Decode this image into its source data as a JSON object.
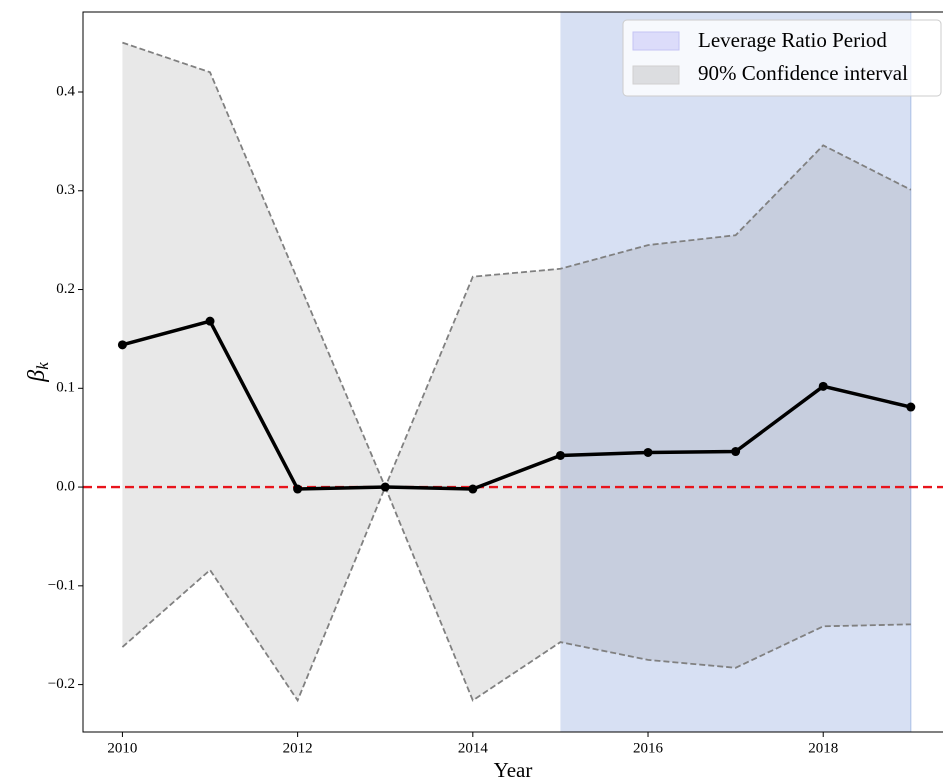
{
  "chart_data": {
    "type": "line",
    "x_label": "Year",
    "y_label": {
      "symbol": "β",
      "subscript": "k"
    },
    "x": [
      2010,
      2011,
      2012,
      2013,
      2014,
      2015,
      2016,
      2017,
      2018,
      2019
    ],
    "series": [
      {
        "name": "βk",
        "color": "#000000",
        "values": [
          0.144,
          0.168,
          -0.002,
          0.0,
          -0.002,
          0.032,
          0.035,
          0.036,
          0.102,
          0.081
        ]
      }
    ],
    "band": {
      "name": "90% Confidence interval",
      "color": "#808080",
      "alpha": 0.18,
      "upper": [
        0.45,
        0.42,
        0.21,
        0.0,
        0.213,
        0.221,
        0.245,
        0.255,
        0.346,
        0.301
      ],
      "lower": [
        -0.162,
        -0.084,
        -0.216,
        0.0,
        -0.216,
        -0.157,
        -0.175,
        -0.183,
        -0.141,
        -0.139
      ]
    },
    "period": {
      "name": "Leverage Ratio Period",
      "color": "#d7e0f3",
      "legend_color": "#dcdcfa",
      "start": 2015,
      "end": 2019
    },
    "hline": {
      "value": 0,
      "color": "#e8141c"
    },
    "xlim": [
      2009.55,
      2019.45
    ],
    "ylim": [
      -0.248,
      0.481
    ],
    "xticks": [
      2010,
      2012,
      2014,
      2016,
      2018
    ],
    "yticks": [
      {
        "value": -0.2,
        "label": "−0.2"
      },
      {
        "value": -0.1,
        "label": "−0.1"
      },
      {
        "value": 0,
        "label": "0.0"
      },
      {
        "value": 0.1,
        "label": "0.1"
      },
      {
        "value": 0.2,
        "label": "0.2"
      },
      {
        "value": 0.3,
        "label": "0.3"
      },
      {
        "value": 0.4,
        "label": "0.4"
      }
    ],
    "legend": "upper right"
  }
}
